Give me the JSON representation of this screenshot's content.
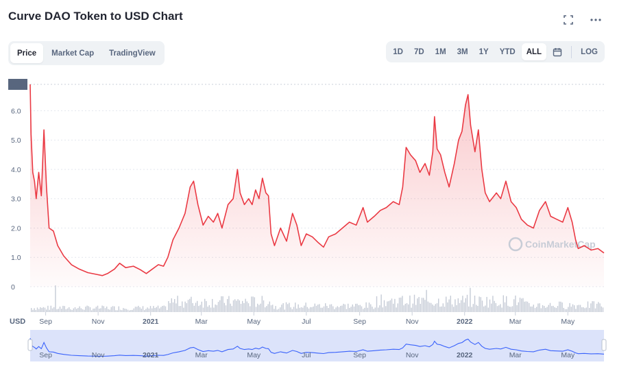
{
  "header": {
    "title": "Curve DAO Token to USD Chart",
    "fullscreen_icon": "fullscreen-icon",
    "more_icon": "more-dots-icon"
  },
  "left_tabs": [
    {
      "label": "Price",
      "active": true
    },
    {
      "label": "Market Cap",
      "active": false
    },
    {
      "label": "TradingView",
      "active": false
    }
  ],
  "range_tabs": [
    {
      "label": "1D",
      "active": false
    },
    {
      "label": "7D",
      "active": false
    },
    {
      "label": "1M",
      "active": false
    },
    {
      "label": "3M",
      "active": false
    },
    {
      "label": "1Y",
      "active": false
    },
    {
      "label": "YTD",
      "active": false
    },
    {
      "label": "ALL",
      "active": true
    }
  ],
  "calendar_icon": "calendar-icon",
  "log_label": "LOG",
  "currency_label": "USD",
  "watermark": "CoinMarketCap",
  "colors": {
    "line": "#ea3943",
    "fill_top": "#ea3943",
    "volume": "#c5cbd6",
    "nav_line": "#3861fb",
    "nav_fill": "#dce3fa"
  },
  "chart_data": {
    "type": "line",
    "ylabel": "",
    "ylim": [
      0,
      6.9
    ],
    "y_ticks": [
      "6.9",
      "6.0",
      "5.0",
      "4.0",
      "3.0",
      "2.0",
      "1.0",
      "0"
    ],
    "x_tick_labels": [
      "Sep",
      "Nov",
      "2021",
      "Mar",
      "May",
      "Jul",
      "Sep",
      "Nov",
      "2022",
      "Mar",
      "May"
    ],
    "x_start": "2020-08-14",
    "x_end": "2022-06-12",
    "series": [
      {
        "name": "",
        "points": [
          [
            "2020-08-14",
            6.9
          ],
          [
            "2020-08-15",
            5.2
          ],
          [
            "2020-08-17",
            3.9
          ],
          [
            "2020-08-19",
            3.6
          ],
          [
            "2020-08-21",
            3.0
          ],
          [
            "2020-08-24",
            3.9
          ],
          [
            "2020-08-27",
            3.1
          ],
          [
            "2020-08-30",
            5.35
          ],
          [
            "2020-09-02",
            3.4
          ],
          [
            "2020-09-05",
            2.0
          ],
          [
            "2020-09-10",
            1.9
          ],
          [
            "2020-09-15",
            1.4
          ],
          [
            "2020-09-22",
            1.05
          ],
          [
            "2020-10-01",
            0.75
          ],
          [
            "2020-10-10",
            0.6
          ],
          [
            "2020-10-20",
            0.48
          ],
          [
            "2020-10-30",
            0.42
          ],
          [
            "2020-11-06",
            0.38
          ],
          [
            "2020-11-12",
            0.45
          ],
          [
            "2020-11-20",
            0.6
          ],
          [
            "2020-11-26",
            0.8
          ],
          [
            "2020-12-03",
            0.65
          ],
          [
            "2020-12-12",
            0.7
          ],
          [
            "2020-12-20",
            0.58
          ],
          [
            "2020-12-27",
            0.45
          ],
          [
            "2021-01-03",
            0.6
          ],
          [
            "2021-01-10",
            0.75
          ],
          [
            "2021-01-16",
            0.7
          ],
          [
            "2021-01-21",
            1.0
          ],
          [
            "2021-01-27",
            1.6
          ],
          [
            "2021-02-03",
            2.0
          ],
          [
            "2021-02-10",
            2.5
          ],
          [
            "2021-02-16",
            3.4
          ],
          [
            "2021-02-20",
            3.6
          ],
          [
            "2021-02-25",
            2.8
          ],
          [
            "2021-03-03",
            2.1
          ],
          [
            "2021-03-09",
            2.4
          ],
          [
            "2021-03-15",
            2.2
          ],
          [
            "2021-03-20",
            2.5
          ],
          [
            "2021-03-25",
            2.0
          ],
          [
            "2021-04-01",
            2.8
          ],
          [
            "2021-04-07",
            3.0
          ],
          [
            "2021-04-12",
            4.0
          ],
          [
            "2021-04-15",
            3.2
          ],
          [
            "2021-04-20",
            2.8
          ],
          [
            "2021-04-25",
            3.0
          ],
          [
            "2021-04-29",
            2.8
          ],
          [
            "2021-05-03",
            3.3
          ],
          [
            "2021-05-07",
            3.0
          ],
          [
            "2021-05-11",
            3.7
          ],
          [
            "2021-05-15",
            3.2
          ],
          [
            "2021-05-18",
            3.1
          ],
          [
            "2021-05-21",
            1.8
          ],
          [
            "2021-05-25",
            1.4
          ],
          [
            "2021-06-01",
            2.0
          ],
          [
            "2021-06-08",
            1.55
          ],
          [
            "2021-06-15",
            2.5
          ],
          [
            "2021-06-20",
            2.1
          ],
          [
            "2021-06-25",
            1.4
          ],
          [
            "2021-07-01",
            1.8
          ],
          [
            "2021-07-08",
            1.7
          ],
          [
            "2021-07-15",
            1.5
          ],
          [
            "2021-07-21",
            1.35
          ],
          [
            "2021-07-27",
            1.7
          ],
          [
            "2021-08-04",
            1.8
          ],
          [
            "2021-08-12",
            2.0
          ],
          [
            "2021-08-20",
            2.2
          ],
          [
            "2021-08-28",
            2.1
          ],
          [
            "2021-09-05",
            2.7
          ],
          [
            "2021-09-10",
            2.2
          ],
          [
            "2021-09-18",
            2.4
          ],
          [
            "2021-09-25",
            2.6
          ],
          [
            "2021-10-02",
            2.7
          ],
          [
            "2021-10-10",
            2.9
          ],
          [
            "2021-10-17",
            2.8
          ],
          [
            "2021-10-21",
            3.4
          ],
          [
            "2021-10-25",
            4.75
          ],
          [
            "2021-10-30",
            4.5
          ],
          [
            "2021-11-05",
            4.3
          ],
          [
            "2021-11-10",
            3.9
          ],
          [
            "2021-11-16",
            4.2
          ],
          [
            "2021-11-21",
            3.8
          ],
          [
            "2021-11-25",
            4.6
          ],
          [
            "2021-11-27",
            5.8
          ],
          [
            "2021-11-30",
            4.7
          ],
          [
            "2021-12-04",
            4.5
          ],
          [
            "2021-12-09",
            3.9
          ],
          [
            "2021-12-14",
            3.4
          ],
          [
            "2021-12-20",
            4.2
          ],
          [
            "2021-12-25",
            5.0
          ],
          [
            "2021-12-29",
            5.3
          ],
          [
            "2022-01-02",
            6.2
          ],
          [
            "2022-01-05",
            6.55
          ],
          [
            "2022-01-08",
            5.5
          ],
          [
            "2022-01-13",
            4.6
          ],
          [
            "2022-01-17",
            5.35
          ],
          [
            "2022-01-21",
            4.0
          ],
          [
            "2022-01-25",
            3.2
          ],
          [
            "2022-01-30",
            2.9
          ],
          [
            "2022-02-07",
            3.2
          ],
          [
            "2022-02-12",
            3.0
          ],
          [
            "2022-02-18",
            3.6
          ],
          [
            "2022-02-24",
            2.9
          ],
          [
            "2022-03-02",
            2.7
          ],
          [
            "2022-03-08",
            2.3
          ],
          [
            "2022-03-15",
            2.1
          ],
          [
            "2022-03-22",
            2.0
          ],
          [
            "2022-03-29",
            2.6
          ],
          [
            "2022-04-05",
            2.9
          ],
          [
            "2022-04-11",
            2.4
          ],
          [
            "2022-04-18",
            2.3
          ],
          [
            "2022-04-25",
            2.2
          ],
          [
            "2022-05-01",
            2.7
          ],
          [
            "2022-05-06",
            2.2
          ],
          [
            "2022-05-10",
            1.6
          ],
          [
            "2022-05-13",
            1.3
          ],
          [
            "2022-05-20",
            1.4
          ],
          [
            "2022-05-28",
            1.25
          ],
          [
            "2022-06-05",
            1.3
          ],
          [
            "2022-06-12",
            1.15
          ]
        ]
      }
    ]
  }
}
